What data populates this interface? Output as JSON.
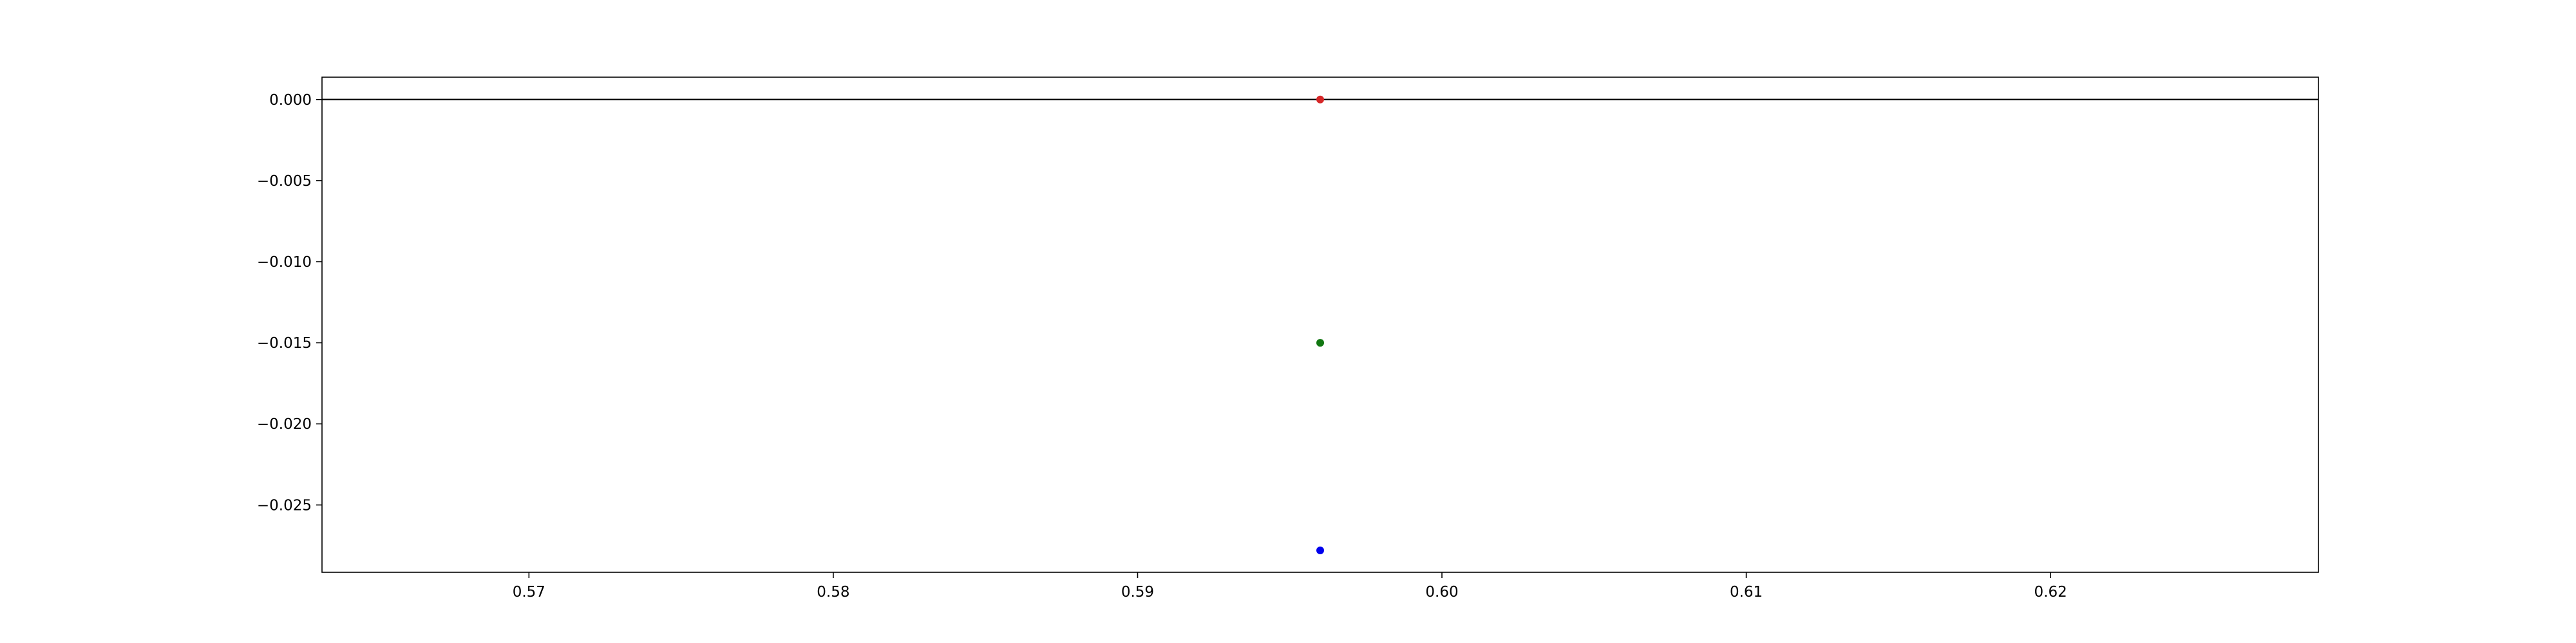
{
  "chart_data": {
    "type": "scatter",
    "title": "",
    "xlabel": "",
    "ylabel": "",
    "xlim": [
      0.5632,
      0.6288
    ],
    "ylim": [
      -0.02915,
      0.00138
    ],
    "grid": false,
    "legend": "none",
    "x_ticks": [
      {
        "value": 0.57,
        "label": "0.57"
      },
      {
        "value": 0.58,
        "label": "0.58"
      },
      {
        "value": 0.59,
        "label": "0.59"
      },
      {
        "value": 0.6,
        "label": "0.60"
      },
      {
        "value": 0.61,
        "label": "0.61"
      },
      {
        "value": 0.62,
        "label": "0.62"
      }
    ],
    "y_ticks": [
      {
        "value": 0.0,
        "label": "0.000"
      },
      {
        "value": -0.005,
        "label": "−0.005"
      },
      {
        "value": -0.01,
        "label": "−0.010"
      },
      {
        "value": -0.015,
        "label": "−0.015"
      },
      {
        "value": -0.02,
        "label": "−0.020"
      },
      {
        "value": -0.025,
        "label": "−0.025"
      }
    ],
    "reference_line": {
      "y": 0.0,
      "color": "#000000"
    },
    "points": [
      {
        "name": "red-point",
        "x": 0.596,
        "y": 0.0,
        "color": "#d62728"
      },
      {
        "name": "green-point",
        "x": 0.596,
        "y": -0.015,
        "color": "#117711"
      },
      {
        "name": "blue-point",
        "x": 0.596,
        "y": -0.0278,
        "color": "#0000ee"
      }
    ]
  }
}
